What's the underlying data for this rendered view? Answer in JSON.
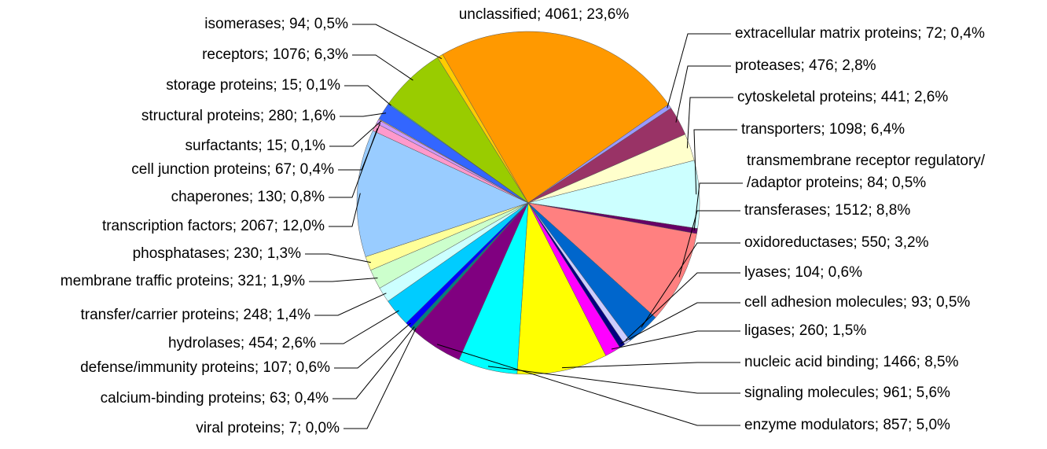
{
  "chart_data": {
    "type": "pie",
    "categories": [
      "unclassified; 4061; 23,6%",
      "extracellular matrix proteins; 72; 0,4%",
      "proteases; 476; 2,8%",
      "cytoskeletal proteins; 441; 2,6%",
      "transporters; 1098; 6,4%",
      "transmembrane receptor regulatory/\n/adaptor proteins; 84; 0,5%",
      "transferases; 1512; 8,8%",
      "oxidoreductases; 550; 3,2%",
      "lyases; 104; 0,6%",
      "cell adhesion molecules; 93; 0,5%",
      "ligases; 260; 1,5%",
      "nucleic acid binding; 1466; 8,5%",
      "signaling molecules; 961; 5,6%",
      "enzyme modulators; 857; 5,0%",
      "viral proteins; 7; 0,0%",
      "calcium-binding proteins; 63; 0,4%",
      "defense/immunity proteins; 107; 0,6%",
      "hydrolases; 454; 2,6%",
      "transfer/carrier proteins; 248; 1,4%",
      "membrane traffic proteins; 321; 1,9%",
      "phosphatases; 230; 1,3%",
      "transcription factors; 2067; 12,0%",
      "chaperones; 130; 0,8%",
      "cell junction proteins; 67; 0,4%",
      "surfactants; 15; 0,1%",
      "structural proteins; 280; 1,6%",
      "storage proteins; 15; 0,1%",
      "receptors; 1076; 6,3%",
      "isomerases; 94; 0,5%"
    ],
    "values": [
      4061,
      72,
      476,
      441,
      1098,
      84,
      1512,
      550,
      104,
      93,
      260,
      1466,
      961,
      857,
      7,
      63,
      107,
      454,
      248,
      321,
      230,
      2067,
      130,
      67,
      15,
      280,
      15,
      1076,
      94
    ],
    "colors": [
      "#FF9900",
      "#9999FF",
      "#993366",
      "#FFFFCC",
      "#CCFFFF",
      "#660066",
      "#FF8080",
      "#0066CC",
      "#CCCCFF",
      "#000080",
      "#FF00FF",
      "#FFFF00",
      "#00FFFF",
      "#800080",
      "#800000",
      "#008080",
      "#0000FF",
      "#00CCFF",
      "#CCFFFF",
      "#CCFFCC",
      "#FFFF99",
      "#99CCFF",
      "#FF99CC",
      "#CC99FF",
      "#FFCC99",
      "#3366FF",
      "#33CCCC",
      "#99CC00",
      "#FFCC00"
    ]
  }
}
